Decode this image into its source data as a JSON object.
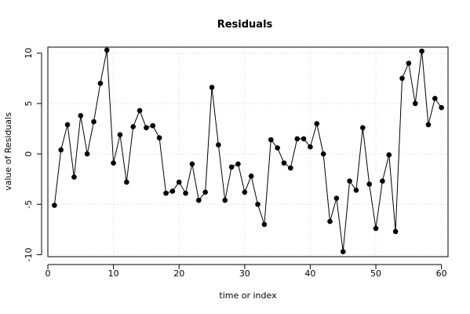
{
  "chart_data": {
    "type": "line",
    "title": "Residuals",
    "xlabel": "time or index",
    "ylabel": "value of Residuals",
    "xlim": [
      0,
      61
    ],
    "ylim": [
      -10.2,
      10.6
    ],
    "x_ticks": [
      0,
      10,
      20,
      30,
      40,
      50,
      60
    ],
    "y_ticks": [
      -10,
      -5,
      0,
      5,
      10
    ],
    "grid": true,
    "x": [
      1,
      2,
      3,
      4,
      5,
      6,
      7,
      8,
      9,
      10,
      11,
      12,
      13,
      14,
      15,
      16,
      17,
      18,
      19,
      20,
      21,
      22,
      23,
      24,
      25,
      26,
      27,
      28,
      29,
      30,
      31,
      32,
      33,
      34,
      35,
      36,
      37,
      38,
      39,
      40,
      41,
      42,
      43,
      44,
      45,
      46,
      47,
      48,
      49,
      50,
      51,
      52,
      53,
      54,
      55,
      56,
      57,
      58,
      59,
      60
    ],
    "values": [
      -5.1,
      0.4,
      2.9,
      -2.3,
      3.8,
      0.0,
      3.2,
      7.0,
      10.3,
      -0.9,
      1.9,
      -2.8,
      2.7,
      4.3,
      2.6,
      2.8,
      1.6,
      -3.9,
      -3.7,
      -2.8,
      -3.9,
      -1.0,
      -4.6,
      -3.8,
      6.6,
      0.9,
      -4.6,
      -1.3,
      -1.0,
      -3.8,
      -2.2,
      -5.0,
      -7.0,
      1.4,
      0.6,
      -0.9,
      -1.4,
      1.5,
      1.5,
      0.7,
      3.0,
      0.0,
      -6.7,
      -4.4,
      -9.7,
      -2.7,
      -3.6,
      2.6,
      -3.0,
      -7.4,
      -2.7,
      -0.1,
      -7.7,
      7.5,
      9.0,
      5.0,
      10.2,
      2.9,
      5.5,
      4.6
    ]
  }
}
